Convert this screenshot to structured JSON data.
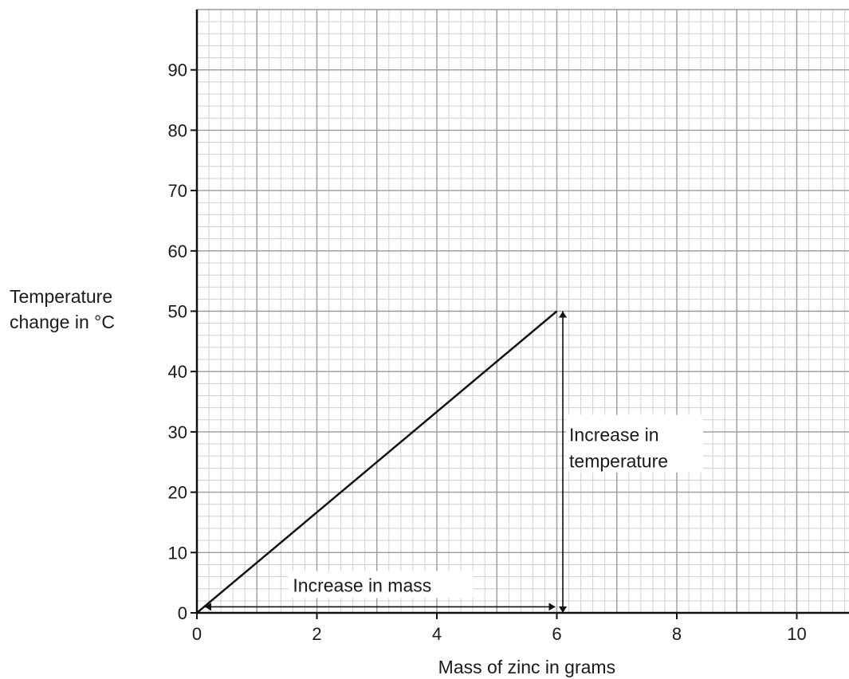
{
  "chart_data": {
    "type": "line",
    "xlabel": "Mass of zinc in grams",
    "ylabel_lines": [
      "Temperature",
      "change in °C"
    ],
    "xlim": [
      0,
      10.87
    ],
    "ylim": [
      0,
      100
    ],
    "x_ticks": [
      0,
      2,
      4,
      6,
      8,
      10
    ],
    "y_ticks": [
      0,
      10,
      20,
      30,
      40,
      50,
      60,
      70,
      80,
      90
    ],
    "grid": "on",
    "series": [
      {
        "x": [
          0,
          6
        ],
        "y": [
          0,
          50
        ]
      }
    ],
    "annotations": {
      "mass_arrow": {
        "label": "Increase in mass",
        "x": [
          0,
          6
        ],
        "y": 1
      },
      "temp_arrow": {
        "label_lines": [
          "Increase in",
          "temperature"
        ],
        "x": 6.1,
        "y": [
          0,
          50
        ]
      }
    }
  },
  "colors": {
    "major_grid": "#9a9a9a",
    "minor_grid": "#cfcfcf",
    "axis": "#111111",
    "line": "#111111"
  }
}
